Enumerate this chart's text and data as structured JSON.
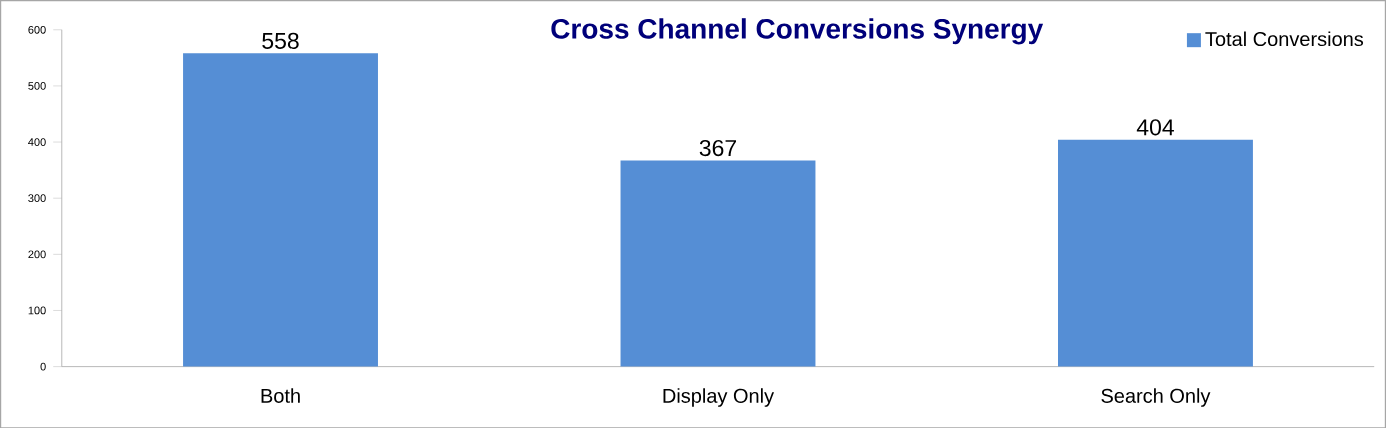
{
  "chart_data": {
    "type": "bar",
    "title": "Cross Channel Conversions Synergy",
    "categories": [
      "Both",
      "Display Only",
      "Search Only"
    ],
    "series": [
      {
        "name": "Total Conversions",
        "color": "#558ed5",
        "values": [
          558,
          367,
          404
        ]
      }
    ],
    "ylim": [
      0,
      600
    ],
    "yticks": [
      0,
      100,
      200,
      300,
      400,
      500,
      600
    ],
    "data_labels": true,
    "legend": "top right",
    "grid": false
  }
}
